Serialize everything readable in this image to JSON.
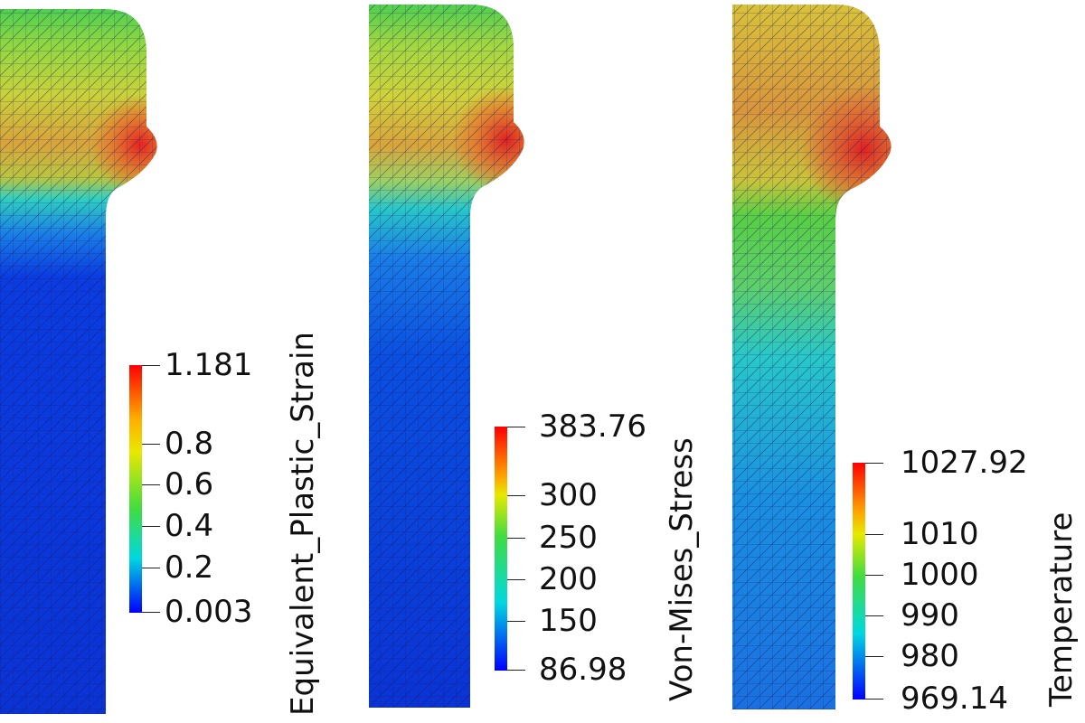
{
  "panels": [
    {
      "field": "Equivalent_Plastic_Strain",
      "colorbar": {
        "max_label": "1.181",
        "min_label": "0.003",
        "ticks": [
          "0.8",
          "0.6",
          "0.4",
          "0.2"
        ],
        "values": [
          1.181,
          0.8,
          0.6,
          0.4,
          0.2,
          0.003
        ]
      }
    },
    {
      "field": "Von-Mises_Stress",
      "colorbar": {
        "max_label": "383.76",
        "min_label": "86.98",
        "ticks": [
          "300",
          "250",
          "200",
          "150"
        ],
        "values": [
          383.76,
          300,
          250,
          200,
          150,
          86.98
        ]
      }
    },
    {
      "field": "Temperature",
      "colorbar": {
        "max_label": "1027.92",
        "min_label": "969.14",
        "ticks": [
          "1010",
          "1000",
          "990",
          "980"
        ],
        "values": [
          1027.92,
          1010,
          1000,
          990,
          980,
          969.14
        ]
      }
    }
  ],
  "colormap": [
    "#0000ff",
    "#00ffff",
    "#00ff00",
    "#ffff00",
    "#ff0000"
  ],
  "mesh_line_color": "#1a1a66"
}
